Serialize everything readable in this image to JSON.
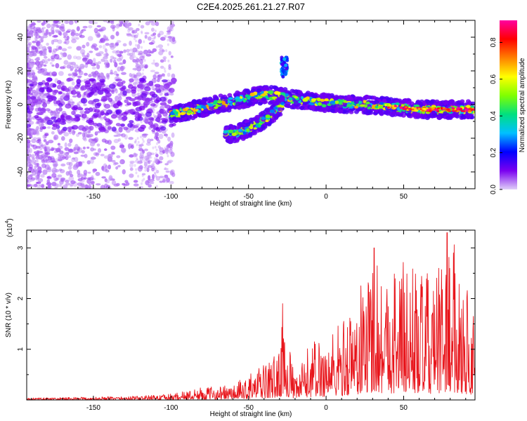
{
  "title": "C2E4.2025.261.21.27.R07",
  "chart_data": [
    {
      "type": "heatmap",
      "title": "C2E4.2025.261.21.27.R07",
      "xlabel": "Height of straight line (km)",
      "ylabel": "Frequency (Hz)",
      "xlim": [
        -193,
        96
      ],
      "ylim": [
        -50,
        50
      ],
      "x_ticks": [
        -150,
        -100,
        -50,
        0,
        50
      ],
      "x_tick_labels": [
        "-150",
        "-100",
        "-50",
        "0",
        "50"
      ],
      "y_ticks": [
        -40,
        -20,
        0,
        20,
        40
      ],
      "y_tick_labels": [
        "-40",
        "-20",
        "0",
        "20",
        "40"
      ],
      "colorbar": {
        "label": "Normalized spectral amplitude",
        "range": [
          0,
          0.92
        ],
        "ticks": [
          0,
          0.2,
          0.4,
          0.6,
          0.8
        ],
        "tick_labels": [
          "0.0",
          "0.2",
          "0.4",
          "0.6",
          "0.8"
        ],
        "colors": [
          "#e0d0f8",
          "#7a00f0",
          "#0000ff",
          "#00c0ff",
          "#00e080",
          "#80ff00",
          "#ffff00",
          "#ff8000",
          "#ff0000",
          "#ff00a0"
        ]
      },
      "features": [
        {
          "name": "main_band",
          "x": [
            -100,
            -90,
            -80,
            -70,
            -60,
            -50,
            -40,
            -30,
            -20,
            -10,
            0,
            20,
            40,
            60,
            80,
            95
          ],
          "freq": [
            -6,
            -4,
            -2,
            0,
            2,
            4,
            6,
            5,
            3,
            2,
            1,
            0,
            -1,
            -3,
            -3,
            -3
          ],
          "amp": 0.5
        },
        {
          "name": "lower_branch",
          "x": [
            -65,
            -55,
            -45,
            -35,
            -28
          ],
          "freq": [
            -18,
            -16,
            -12,
            -6,
            0
          ],
          "amp": 0.45
        },
        {
          "name": "upper_spot",
          "x": [
            -27
          ],
          "freq": [
            22
          ],
          "amp": 0.35
        }
      ]
    },
    {
      "type": "line",
      "xlabel": "Height of straight line (km)",
      "ylabel": "SNR (10 * v/v)",
      "y_multiplier_label": "(x10",
      "y_multiplier_exp": "4",
      "y_multiplier_close": ")",
      "xlim": [
        -193,
        96
      ],
      "ylim": [
        0,
        3.35
      ],
      "x_ticks": [
        -150,
        -100,
        -50,
        0,
        50
      ],
      "x_tick_labels": [
        "-150",
        "-100",
        "-50",
        "0",
        "50"
      ],
      "y_ticks": [
        1,
        2,
        3
      ],
      "y_tick_labels": [
        "1",
        "2",
        "3"
      ],
      "series": [
        {
          "name": "SNR",
          "color": "#e8151b",
          "envelope_x": [
            -193,
            -150,
            -120,
            -100,
            -80,
            -60,
            -50,
            -40,
            -30,
            -28,
            -20,
            -10,
            0,
            10,
            20,
            30,
            40,
            50,
            60,
            70,
            80,
            90,
            96
          ],
          "envelope_y": [
            0.04,
            0.06,
            0.08,
            0.12,
            0.25,
            0.3,
            0.5,
            0.7,
            1.0,
            1.9,
            0.4,
            1.2,
            1.3,
            1.6,
            2.1,
            3.0,
            2.6,
            2.9,
            2.6,
            2.4,
            3.3,
            2.4,
            2.0
          ],
          "notable_points": [
            {
              "x": -28,
              "y": 1.9
            },
            {
              "x": 31,
              "y": 3.0
            },
            {
              "x": 78,
              "y": 3.3
            }
          ]
        }
      ]
    }
  ]
}
